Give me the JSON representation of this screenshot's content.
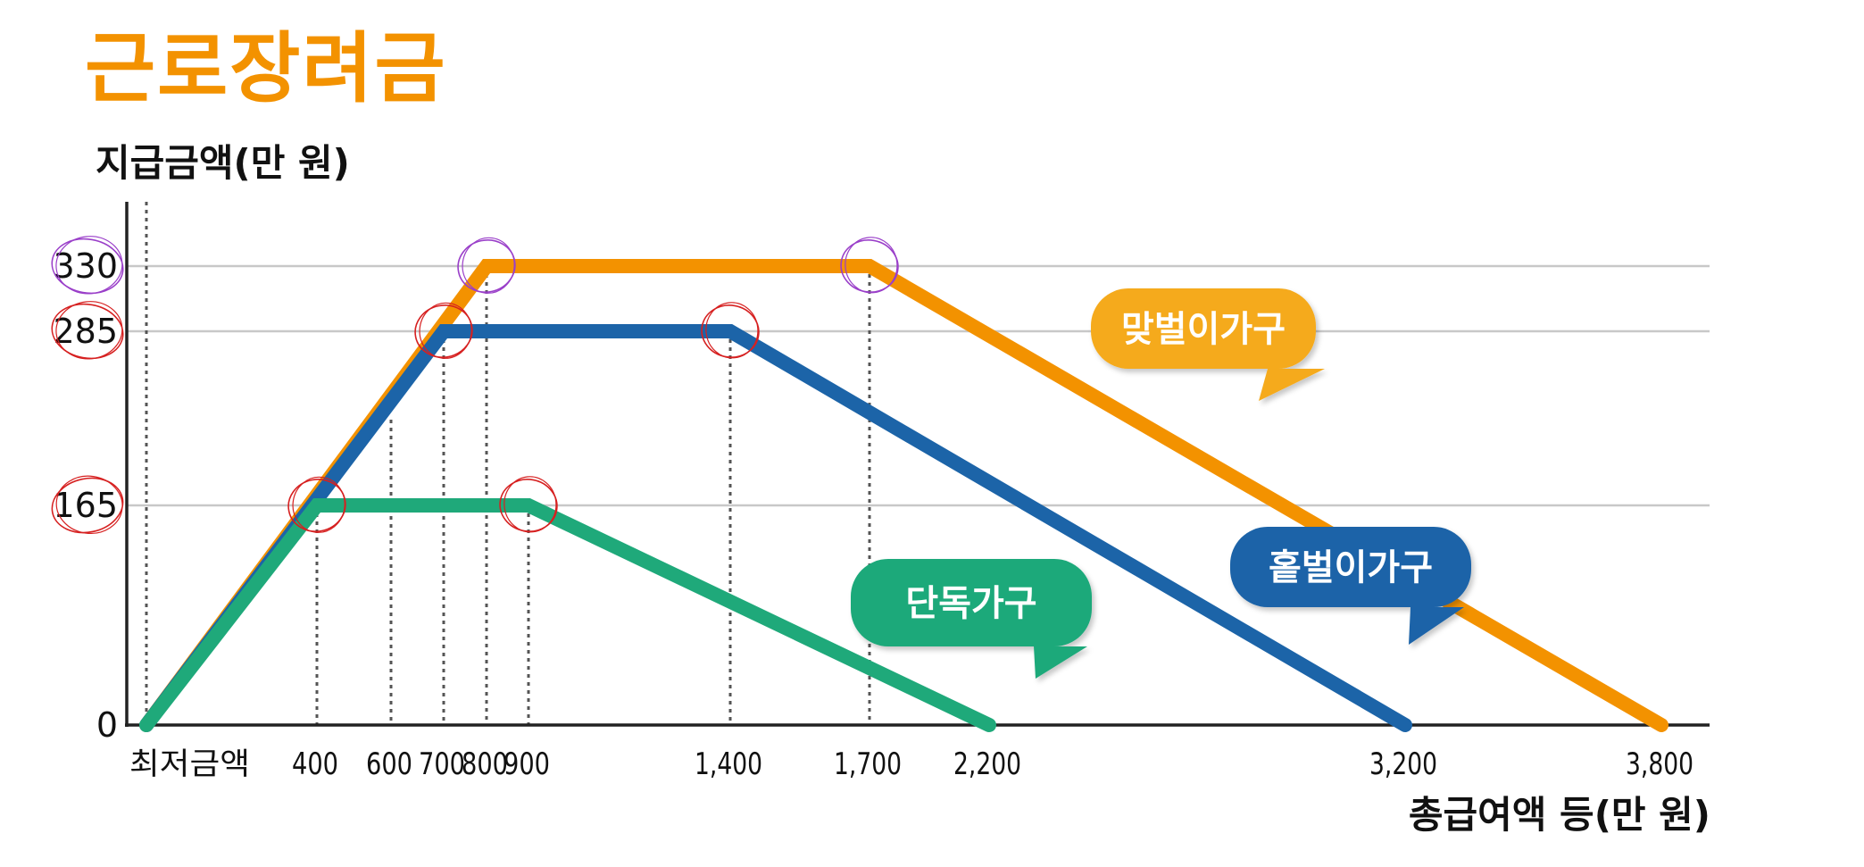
{
  "colors": {
    "title": "#F39200",
    "dual_income": "#F39200",
    "single_earner": "#1C64A8",
    "single_person": "#1FA97A",
    "dual_label_bg": "#F5AA1C",
    "annotation_red": "#D62020",
    "annotation_purple": "#9A3FC9",
    "grid": "#C8C8C8",
    "axis": "#222222",
    "guide": "#555555"
  },
  "chart_data": {
    "type": "line",
    "title": "근로장려금",
    "ylabel": "지급금액(만 원)",
    "xlabel": "총급여액 등(만 원)",
    "x_tick_labels": [
      {
        "x": 0,
        "label": "최저금액"
      },
      {
        "x": 400,
        "label": "400"
      },
      {
        "x": 600,
        "label": "600"
      },
      {
        "x": 700,
        "label": "700"
      },
      {
        "x": 800,
        "label": "800"
      },
      {
        "x": 900,
        "label": "900"
      },
      {
        "x": 1400,
        "label": "1,400"
      },
      {
        "x": 1700,
        "label": "1,700"
      },
      {
        "x": 2200,
        "label": "2,200"
      },
      {
        "x": 3200,
        "label": "3,200"
      },
      {
        "x": 3800,
        "label": "3,800"
      }
    ],
    "y_tick_labels": [
      {
        "y": 0,
        "label": "0"
      },
      {
        "y": 165,
        "label": "165"
      },
      {
        "y": 285,
        "label": "285"
      },
      {
        "y": 330,
        "label": "330"
      }
    ],
    "ylim": [
      0,
      370
    ],
    "grid_y": [
      165,
      285,
      330
    ],
    "guides_x": [
      0,
      400,
      600,
      700,
      800,
      900,
      1400,
      1700
    ],
    "series": [
      {
        "name": "맞벌이가구",
        "key": "dual",
        "points": [
          [
            0,
            0
          ],
          [
            800,
            330
          ],
          [
            1700,
            330
          ],
          [
            3800,
            0
          ]
        ]
      },
      {
        "name": "홑벌이가구",
        "key": "single_earner",
        "points": [
          [
            0,
            0
          ],
          [
            700,
            285
          ],
          [
            1400,
            285
          ],
          [
            3200,
            0
          ]
        ]
      },
      {
        "name": "단독가구",
        "key": "single_person",
        "points": [
          [
            0,
            0
          ],
          [
            400,
            165
          ],
          [
            900,
            165
          ],
          [
            2200,
            0
          ]
        ]
      }
    ],
    "annotations": [
      {
        "type": "circle",
        "color": "red",
        "target": "y-tick",
        "value": 285
      },
      {
        "type": "circle",
        "color": "red",
        "target": "y-tick",
        "value": 165
      },
      {
        "type": "circle",
        "color": "purple",
        "target": "y-tick",
        "value": 330
      },
      {
        "type": "circle",
        "color": "purple",
        "target": "point",
        "x": 800,
        "y": 330
      },
      {
        "type": "circle",
        "color": "purple",
        "target": "point",
        "x": 1700,
        "y": 330
      },
      {
        "type": "circle",
        "color": "red",
        "target": "point",
        "x": 700,
        "y": 285
      },
      {
        "type": "circle",
        "color": "red",
        "target": "point",
        "x": 1400,
        "y": 285
      },
      {
        "type": "circle",
        "color": "red",
        "target": "point",
        "x": 400,
        "y": 165
      },
      {
        "type": "circle",
        "color": "red",
        "target": "point",
        "x": 900,
        "y": 165
      }
    ]
  }
}
